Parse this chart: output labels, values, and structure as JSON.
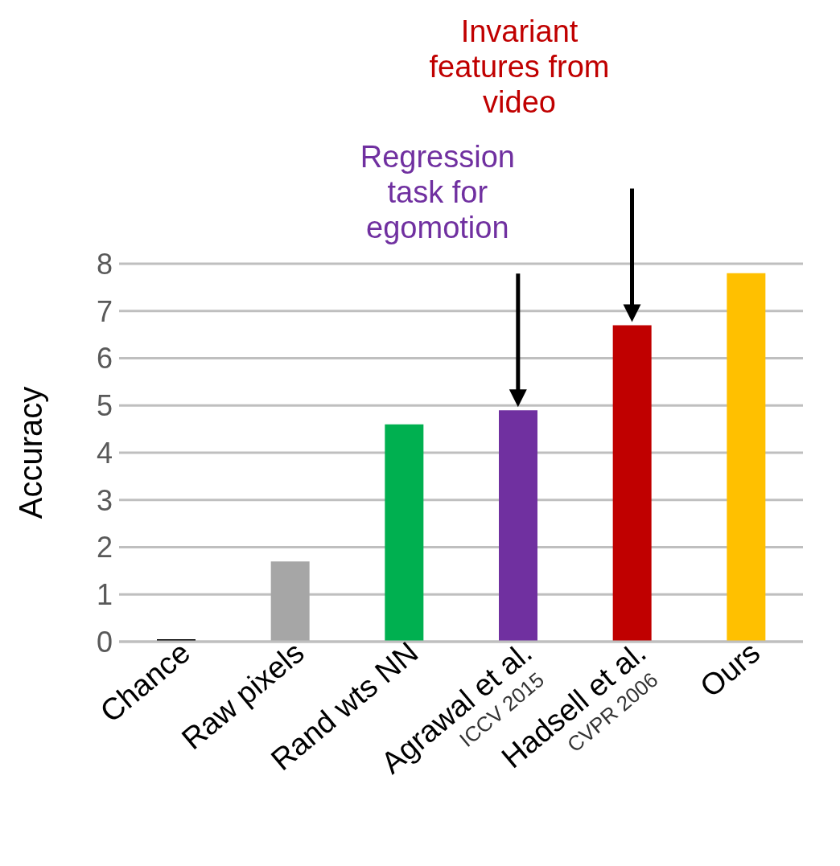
{
  "chart_data": {
    "type": "bar",
    "ylabel": "Accuracy",
    "categories": [
      "Chance",
      "Raw pixels",
      "Rand wts NN",
      "Agrawal et al.\nICCV 2015",
      "Hadsell et al.\nCVPR 2006",
      "Ours"
    ],
    "values": [
      0.05,
      1.7,
      4.6,
      4.9,
      6.7,
      7.8
    ],
    "colors": [
      "#000000",
      "#a6a6a6",
      "#00b050",
      "#7030a0",
      "#c00000",
      "#ffc000"
    ],
    "ylim": [
      0,
      8
    ],
    "yticks": [
      0,
      1,
      2,
      3,
      4,
      5,
      6,
      7,
      8
    ],
    "grid": "y",
    "legend": false,
    "annotations": [
      "Regression\ntask for\negomotion",
      "Invariant\nfeatures from\nvideo"
    ]
  }
}
